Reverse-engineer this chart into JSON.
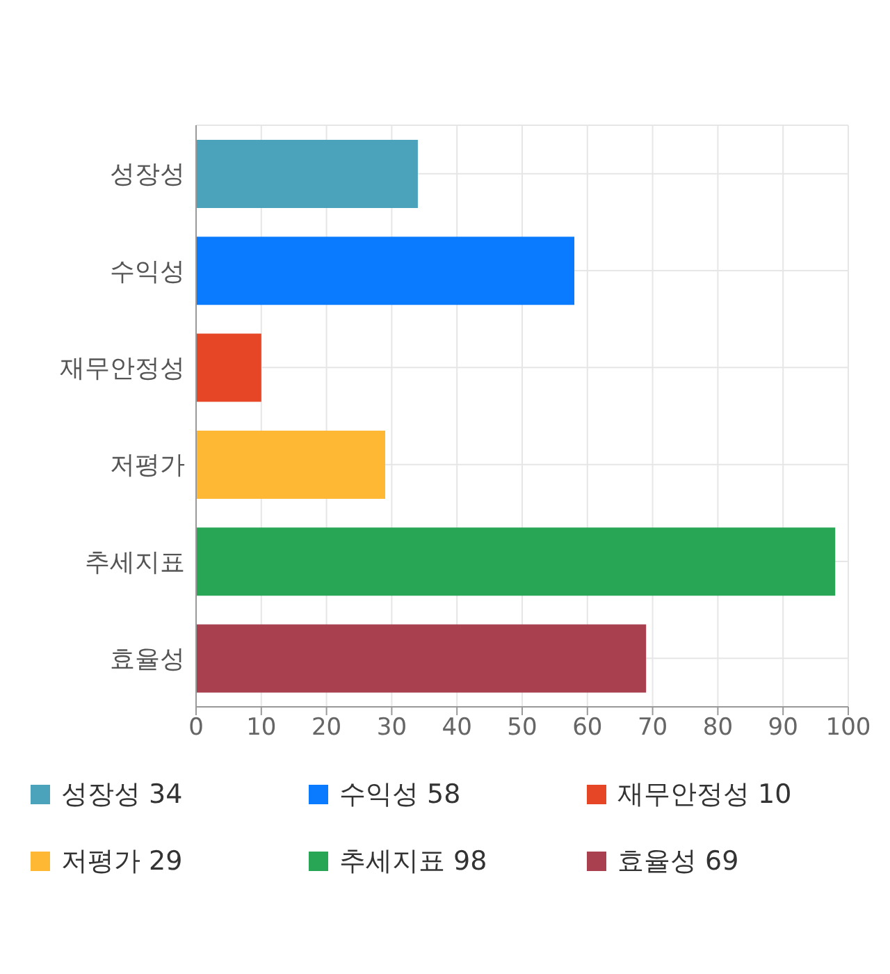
{
  "chart_data": {
    "type": "bar",
    "orientation": "horizontal",
    "stacked": true,
    "categories": [
      "성장성",
      "수익성",
      "재무안정성",
      "저평가",
      "추세지표",
      "효율성"
    ],
    "series": [
      {
        "name": "성장성 34",
        "color": "#4aa3bb",
        "values": [
          34,
          null,
          null,
          null,
          null,
          null
        ]
      },
      {
        "name": "수익성 58",
        "color": "#0a7bff",
        "values": [
          null,
          58,
          null,
          null,
          null,
          null
        ]
      },
      {
        "name": "재무안정성 10",
        "color": "#e64625",
        "values": [
          null,
          null,
          10,
          null,
          null,
          null
        ]
      },
      {
        "name": "저평가 29",
        "color": "#ffb833",
        "values": [
          null,
          null,
          null,
          29,
          null,
          null
        ]
      },
      {
        "name": "추세지표 98",
        "color": "#28a655",
        "values": [
          null,
          null,
          null,
          null,
          98,
          null
        ]
      },
      {
        "name": "효율성 69",
        "color": "#a8404f",
        "values": [
          null,
          null,
          null,
          null,
          null,
          69
        ]
      }
    ],
    "xlim": [
      0,
      100
    ],
    "xticks": [
      0,
      10,
      20,
      30,
      40,
      50,
      60,
      70,
      80,
      90,
      100
    ],
    "grid": true,
    "legend": "bottom"
  }
}
